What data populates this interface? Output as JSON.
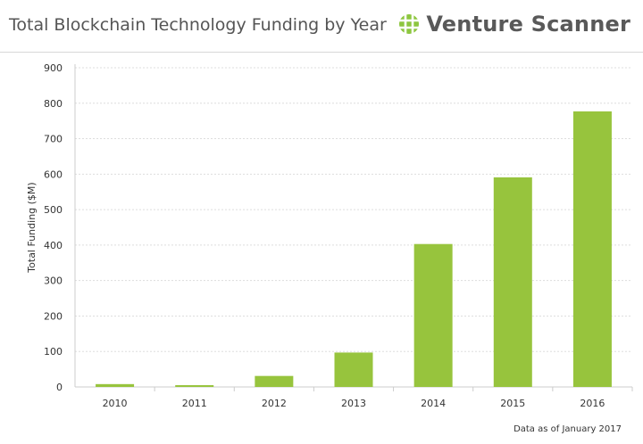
{
  "header": {
    "title": "Total Blockchain Technology Funding by Year",
    "brand_name": "Venture Scanner",
    "brand_logo_icon": "green-grid-globe-icon"
  },
  "footer": {
    "note": "Data as of January 2017"
  },
  "colors": {
    "bar": "#97c43d",
    "grid": "#dddddd",
    "axis_text": "#333333",
    "title_text": "#555555",
    "brand_green": "#8dc63f"
  },
  "chart_data": {
    "type": "bar",
    "title": "Total Blockchain Technology Funding by Year",
    "xlabel": "",
    "ylabel": "Total Funding ($M)",
    "categories": [
      "2010",
      "2011",
      "2012",
      "2013",
      "2014",
      "2015",
      "2016"
    ],
    "values": [
      8,
      5,
      31,
      97,
      403,
      591,
      777
    ],
    "ylim": [
      0,
      900
    ],
    "yticks": [
      0,
      100,
      200,
      300,
      400,
      500,
      600,
      700,
      800,
      900
    ],
    "grid": true,
    "legend": "none"
  }
}
